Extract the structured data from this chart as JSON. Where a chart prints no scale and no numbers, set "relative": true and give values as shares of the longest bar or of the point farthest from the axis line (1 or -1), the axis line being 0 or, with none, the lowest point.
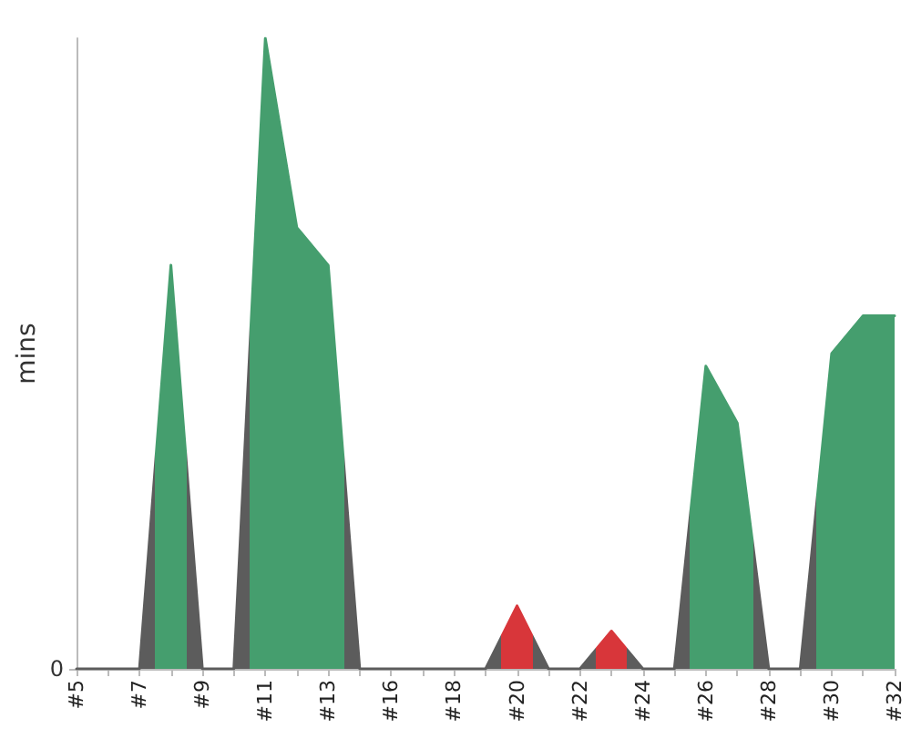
{
  "chart_data": {
    "type": "area",
    "ylabel": "mins",
    "categories": [
      "#5",
      null,
      "#7",
      null,
      "#9",
      null,
      "#11",
      null,
      "#13",
      null,
      "#16",
      null,
      "#18",
      null,
      "#20",
      null,
      "#22",
      null,
      "#24",
      null,
      "#26",
      null,
      "#28",
      null,
      "#30",
      null,
      "#32"
    ],
    "values": [
      0,
      0,
      0,
      0.64,
      0,
      0,
      1,
      0.7,
      0.64,
      0,
      0,
      0,
      0,
      0,
      0.1,
      0,
      0,
      0.06,
      0,
      0,
      0.48,
      0.39,
      0,
      0,
      0.5,
      0.56,
      0.56
    ],
    "colors": [
      "#5c5c5c",
      "#5c5c5c",
      "#5c5c5c",
      "#459e6e",
      "#5c5c5c",
      "#5c5c5c",
      "#459e6e",
      "#459e6e",
      "#459e6e",
      "#5c5c5c",
      "#5c5c5c",
      "#5c5c5c",
      "#5c5c5c",
      "#5c5c5c",
      "#d8363a",
      "#5c5c5c",
      "#5c5c5c",
      "#d8363a",
      "#5c5c5c",
      "#5c5c5c",
      "#459e6e",
      "#459e6e",
      "#5c5c5c",
      "#5c5c5c",
      "#459e6e",
      "#459e6e",
      "#459e6e"
    ],
    "relative": true,
    "annotations": [
      "0"
    ],
    "marker": "none"
  }
}
